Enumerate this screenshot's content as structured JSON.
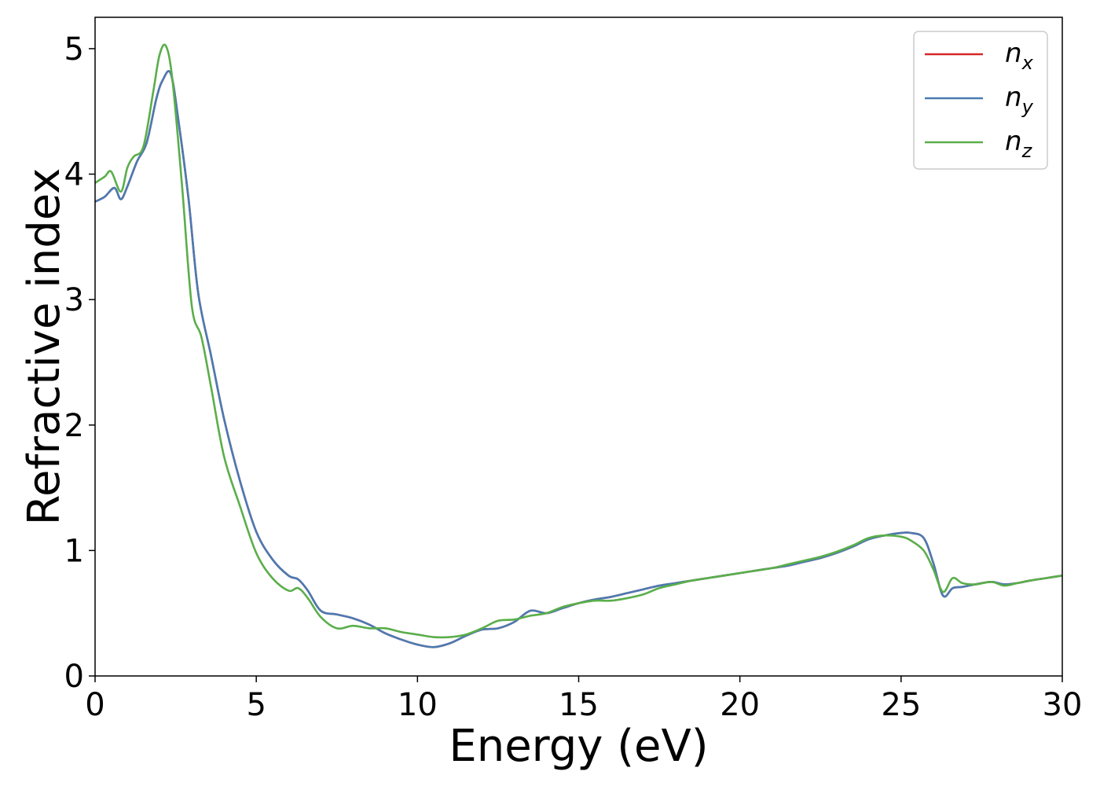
{
  "chart_data": {
    "type": "line",
    "title": "",
    "xlabel": "Energy (eV)",
    "ylabel": "Refractive index",
    "xlim": [
      0,
      30
    ],
    "ylim": [
      0,
      5.25
    ],
    "xticks": [
      0,
      5,
      10,
      15,
      20,
      25,
      30
    ],
    "yticks": [
      0,
      1,
      2,
      3,
      4,
      5
    ],
    "grid": false,
    "legend_position": "top-right",
    "series": [
      {
        "name": "n",
        "subscript": "x",
        "color": "#d62728",
        "x": [
          0,
          0.3,
          0.6,
          0.8,
          1.0,
          1.3,
          1.6,
          1.9,
          2.1,
          2.35,
          2.6,
          2.9,
          3.2,
          3.6,
          4.0,
          4.5,
          5.0,
          5.5,
          6.0,
          6.3,
          6.6,
          7.0,
          7.5,
          8.0,
          8.5,
          9.0,
          9.5,
          10.0,
          10.5,
          11.0,
          11.5,
          12.0,
          12.5,
          13.0,
          13.5,
          14.0,
          14.5,
          15.0,
          15.5,
          16.0,
          16.5,
          17.0,
          17.5,
          18.0,
          18.5,
          19.0,
          19.5,
          20.0,
          20.5,
          21.0,
          21.5,
          22.0,
          22.5,
          23.0,
          23.5,
          24.0,
          24.5,
          25.0,
          25.3,
          25.7,
          26.0,
          26.3,
          26.6,
          26.9,
          27.3,
          27.8,
          28.2,
          28.6,
          29.0,
          29.5,
          30.0
        ],
        "values": [
          3.78,
          3.82,
          3.89,
          3.8,
          3.9,
          4.1,
          4.25,
          4.6,
          4.75,
          4.8,
          4.4,
          3.8,
          3.05,
          2.55,
          2.05,
          1.55,
          1.15,
          0.93,
          0.8,
          0.77,
          0.68,
          0.52,
          0.49,
          0.46,
          0.41,
          0.34,
          0.29,
          0.25,
          0.23,
          0.26,
          0.32,
          0.37,
          0.38,
          0.43,
          0.52,
          0.5,
          0.54,
          0.58,
          0.61,
          0.63,
          0.66,
          0.69,
          0.72,
          0.74,
          0.76,
          0.78,
          0.8,
          0.82,
          0.84,
          0.86,
          0.88,
          0.91,
          0.94,
          0.98,
          1.03,
          1.09,
          1.12,
          1.14,
          1.14,
          1.1,
          0.9,
          0.64,
          0.7,
          0.71,
          0.73,
          0.75,
          0.73,
          0.74,
          0.76,
          0.78,
          0.8
        ]
      },
      {
        "name": "n",
        "subscript": "y",
        "color": "#4a7bb2",
        "x": [
          0,
          0.3,
          0.6,
          0.8,
          1.0,
          1.3,
          1.6,
          1.9,
          2.1,
          2.35,
          2.6,
          2.9,
          3.2,
          3.6,
          4.0,
          4.5,
          5.0,
          5.5,
          6.0,
          6.3,
          6.6,
          7.0,
          7.5,
          8.0,
          8.5,
          9.0,
          9.5,
          10.0,
          10.5,
          11.0,
          11.5,
          12.0,
          12.5,
          13.0,
          13.5,
          14.0,
          14.5,
          15.0,
          15.5,
          16.0,
          16.5,
          17.0,
          17.5,
          18.0,
          18.5,
          19.0,
          19.5,
          20.0,
          20.5,
          21.0,
          21.5,
          22.0,
          22.5,
          23.0,
          23.5,
          24.0,
          24.5,
          25.0,
          25.3,
          25.7,
          26.0,
          26.3,
          26.6,
          26.9,
          27.3,
          27.8,
          28.2,
          28.6,
          29.0,
          29.5,
          30.0
        ],
        "values": [
          3.78,
          3.82,
          3.89,
          3.8,
          3.9,
          4.1,
          4.25,
          4.6,
          4.75,
          4.8,
          4.4,
          3.8,
          3.05,
          2.55,
          2.05,
          1.55,
          1.15,
          0.93,
          0.8,
          0.77,
          0.68,
          0.52,
          0.49,
          0.46,
          0.41,
          0.34,
          0.29,
          0.25,
          0.23,
          0.26,
          0.32,
          0.37,
          0.38,
          0.43,
          0.52,
          0.5,
          0.54,
          0.58,
          0.61,
          0.63,
          0.66,
          0.69,
          0.72,
          0.74,
          0.76,
          0.78,
          0.8,
          0.82,
          0.84,
          0.86,
          0.88,
          0.91,
          0.94,
          0.98,
          1.03,
          1.09,
          1.12,
          1.14,
          1.14,
          1.1,
          0.9,
          0.64,
          0.7,
          0.71,
          0.73,
          0.75,
          0.73,
          0.74,
          0.76,
          0.78,
          0.8
        ]
      },
      {
        "name": "n",
        "subscript": "z",
        "color": "#5aae4a",
        "x": [
          0,
          0.3,
          0.5,
          0.8,
          1.0,
          1.2,
          1.5,
          1.8,
          2.0,
          2.2,
          2.4,
          2.7,
          3.0,
          3.3,
          3.6,
          4.0,
          4.5,
          5.0,
          5.5,
          6.0,
          6.3,
          6.6,
          7.0,
          7.5,
          8.0,
          8.5,
          9.0,
          9.5,
          10.0,
          10.5,
          11.0,
          11.5,
          12.0,
          12.5,
          13.0,
          13.5,
          14.0,
          14.5,
          15.0,
          15.5,
          16.0,
          16.5,
          17.0,
          17.5,
          18.0,
          18.5,
          19.0,
          19.5,
          20.0,
          20.5,
          21.0,
          21.5,
          22.0,
          22.5,
          23.0,
          23.5,
          24.0,
          24.5,
          25.0,
          25.3,
          25.7,
          26.0,
          26.3,
          26.6,
          26.9,
          27.3,
          27.8,
          28.2,
          28.6,
          29.0,
          29.5,
          30.0
        ],
        "values": [
          3.93,
          3.98,
          4.02,
          3.86,
          4.05,
          4.14,
          4.22,
          4.65,
          4.95,
          5.02,
          4.75,
          3.9,
          2.95,
          2.7,
          2.3,
          1.75,
          1.35,
          0.98,
          0.78,
          0.68,
          0.7,
          0.62,
          0.47,
          0.38,
          0.4,
          0.38,
          0.38,
          0.35,
          0.33,
          0.31,
          0.31,
          0.33,
          0.38,
          0.44,
          0.45,
          0.48,
          0.5,
          0.55,
          0.58,
          0.6,
          0.6,
          0.62,
          0.65,
          0.7,
          0.73,
          0.76,
          0.78,
          0.8,
          0.82,
          0.84,
          0.86,
          0.89,
          0.92,
          0.95,
          0.99,
          1.04,
          1.1,
          1.12,
          1.11,
          1.08,
          1.0,
          0.85,
          0.67,
          0.78,
          0.74,
          0.73,
          0.75,
          0.72,
          0.74,
          0.76,
          0.78,
          0.8
        ]
      }
    ]
  }
}
